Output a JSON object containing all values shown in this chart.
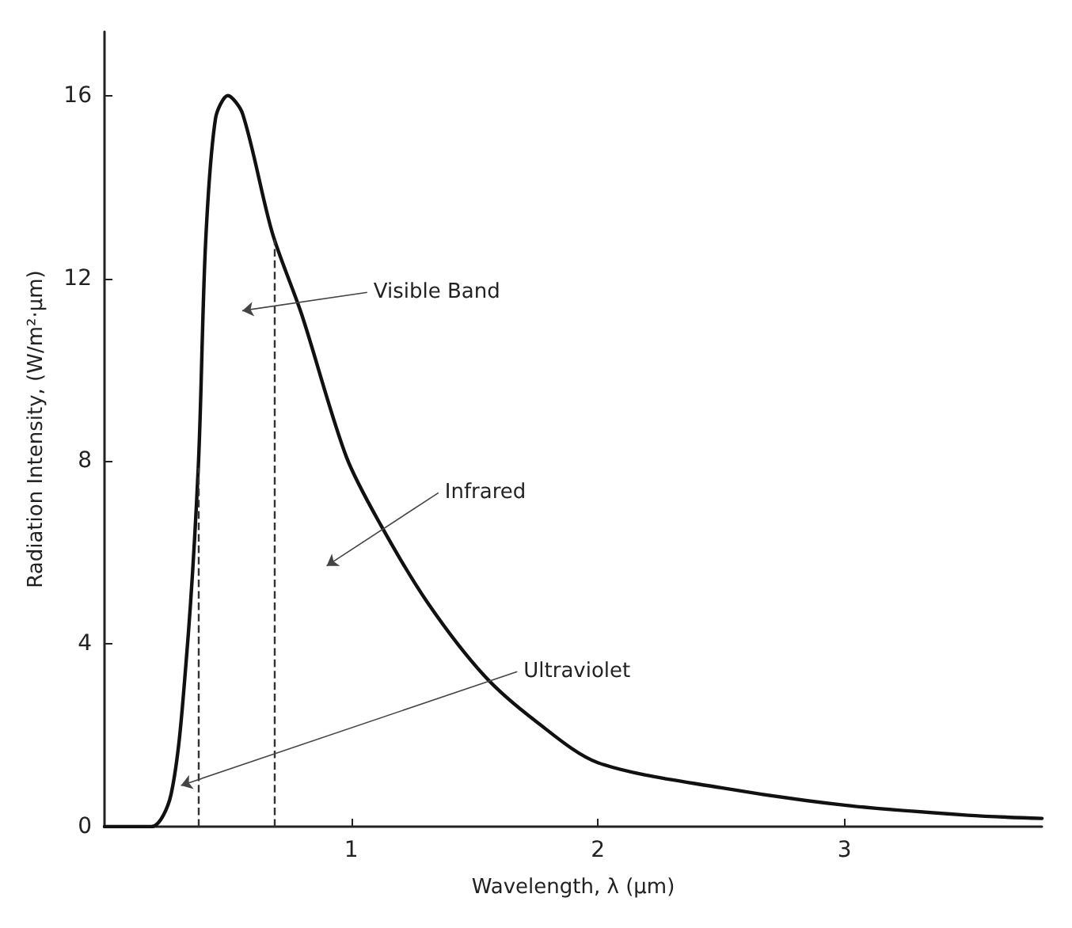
{
  "chart_data": {
    "type": "line",
    "xlabel": "Wavelength, λ (μm)",
    "ylabel": "Radiation Intensity, (W/m²·μm)",
    "series": [
      {
        "color": "#111111",
        "x": [
          0,
          0.19,
          0.27,
          0.33,
          0.38,
          0.41,
          0.45,
          0.5,
          0.56,
          0.68,
          0.8,
          0.98,
          1.12,
          1.31,
          1.54,
          1.75,
          2,
          2.5,
          3,
          3.5,
          3.8
        ],
        "values": [
          0,
          0,
          0.71,
          3.55,
          7.85,
          12.8,
          15.5,
          16,
          15.6,
          13,
          11.2,
          8.1,
          6.6,
          4.9,
          3.3,
          2.3,
          1.4,
          0.85,
          0.47,
          0.25,
          0.18
        ]
      }
    ],
    "xlim": [
      0,
      3.8
    ],
    "xticks": [
      1,
      2,
      3
    ],
    "ylim": [
      0,
      17.4
    ],
    "yticks": [
      0,
      4,
      8,
      12,
      16
    ],
    "grid": false,
    "marker": "none",
    "line_style": "solid",
    "ref_lines": [
      {
        "axis": "x",
        "value": 0.38,
        "line_style": "dashed",
        "color": "#333333"
      },
      {
        "axis": "x",
        "value": 0.69,
        "line_style": "dashed",
        "color": "#333333"
      }
    ],
    "annotations": [
      "Visible Band",
      "Infrared",
      {
        "text": "Ultraviolet",
        "x": 0.31,
        "y": 0.9
      }
    ]
  }
}
